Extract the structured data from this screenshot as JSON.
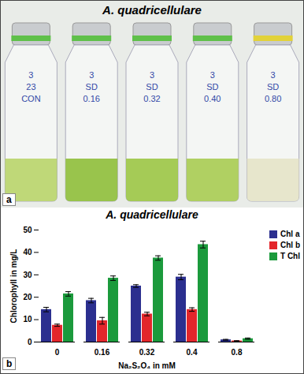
{
  "photo": {
    "title": "A. quadricellulare",
    "panel_label": "a",
    "bottle_labels": [
      [
        "3",
        "23",
        "CON"
      ],
      [
        "3",
        "SD",
        "0.16"
      ],
      [
        "3",
        "SD",
        "0.32"
      ],
      [
        "3",
        "SD",
        "0.40"
      ],
      [
        "3",
        "SD",
        "0.80"
      ]
    ]
  },
  "chart_data": {
    "type": "bar",
    "title": "A. quadricellulare",
    "annotations": [
      "b"
    ],
    "xlabel": "Na₂S₂O₄ in mM",
    "ylabel": "Chlorophyll in mg/L",
    "categories": [
      "0",
      "0.16",
      "0.32",
      "0.4",
      "0.8"
    ],
    "series": [
      {
        "name": "Chl a",
        "color": "#2b2f8f",
        "values": [
          14.5,
          18.5,
          25,
          29,
          1
        ],
        "errors": [
          1,
          1,
          0.6,
          1.2,
          0.2
        ]
      },
      {
        "name": "Chl b",
        "color": "#e3262b",
        "values": [
          7.5,
          9.5,
          12.5,
          14.5,
          0.5
        ],
        "errors": [
          0.5,
          1.5,
          0.8,
          0.8,
          0.1
        ]
      },
      {
        "name": "T Chl",
        "color": "#1b9a3c",
        "values": [
          21.5,
          28.5,
          37.5,
          43.5,
          1.5
        ],
        "errors": [
          1,
          1,
          1,
          1.5,
          0.3
        ]
      }
    ],
    "ylim": [
      0,
      50
    ],
    "yticks": [
      0,
      10,
      20,
      30,
      40,
      50
    ],
    "legend": "top-right"
  }
}
